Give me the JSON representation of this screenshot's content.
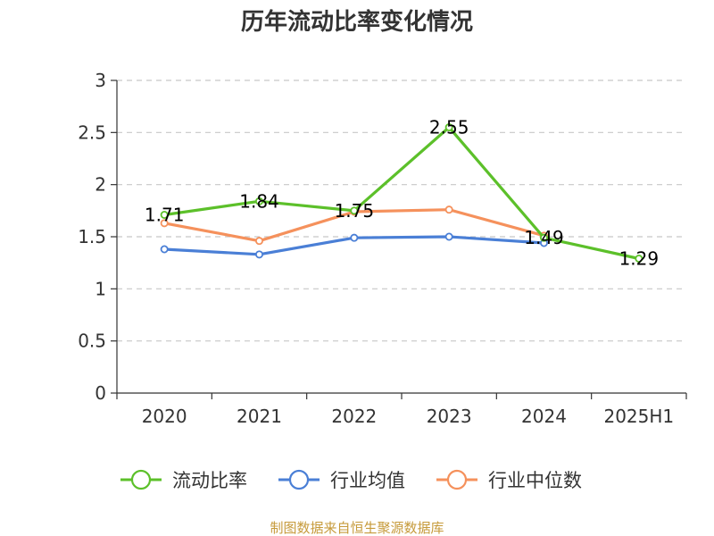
{
  "chart_data": {
    "type": "line",
    "title": "历年流动比率变化情况",
    "categories": [
      "2020",
      "2021",
      "2022",
      "2023",
      "2024",
      "2025H1"
    ],
    "ylim": [
      0,
      3
    ],
    "yticks": [
      "0",
      "0.5",
      "1",
      "1.5",
      "2",
      "2.5",
      "3"
    ],
    "grid": "horizontal-dashed",
    "legend_position": "bottom",
    "series": [
      {
        "name": "流动比率",
        "color": "#5cc02a",
        "values": [
          1.71,
          1.84,
          1.75,
          2.55,
          1.49,
          1.29
        ],
        "labels": [
          "1.71",
          "1.84",
          "1.75",
          "2.55",
          "1.49",
          "1.29"
        ]
      },
      {
        "name": "行业均值",
        "color": "#4a7fd6",
        "values": [
          1.38,
          1.33,
          1.49,
          1.5,
          1.44,
          null
        ]
      },
      {
        "name": "行业中位数",
        "color": "#f5915c",
        "values": [
          1.63,
          1.46,
          1.74,
          1.76,
          1.51,
          null
        ]
      }
    ]
  },
  "source": "制图数据来自恒生聚源数据库"
}
